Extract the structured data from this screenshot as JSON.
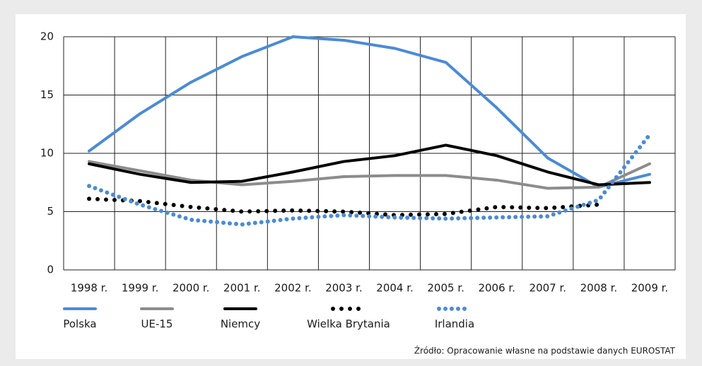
{
  "chart_data": {
    "type": "line",
    "categories": [
      "1998 r.",
      "1999 r.",
      "2000 r.",
      "2001 r.",
      "2002 r.",
      "2003 r.",
      "2004 r.",
      "2005 r.",
      "2006 r.",
      "2007 r.",
      "2008 r.",
      "2009 r."
    ],
    "series": [
      {
        "name": "Polska",
        "color": "#4a8bd6",
        "style": "solid",
        "values": [
          10.2,
          13.4,
          16.1,
          18.3,
          20.0,
          19.7,
          19.0,
          17.8,
          13.9,
          9.6,
          7.1,
          8.2
        ]
      },
      {
        "name": "UE-15",
        "color": "#8c8c8c",
        "style": "solid",
        "values": [
          9.3,
          8.5,
          7.7,
          7.3,
          7.6,
          8.0,
          8.1,
          8.1,
          7.7,
          7.0,
          7.1,
          9.1
        ]
      },
      {
        "name": "Niemcy",
        "color": "#000000",
        "style": "solid",
        "values": [
          9.1,
          8.2,
          7.5,
          7.6,
          8.4,
          9.3,
          9.8,
          10.7,
          9.8,
          8.4,
          7.3,
          7.5
        ]
      },
      {
        "name": "Wielka Brytania",
        "color": "#000000",
        "style": "dotted",
        "values": [
          6.1,
          5.9,
          5.4,
          5.0,
          5.1,
          5.0,
          4.7,
          4.8,
          5.4,
          5.3,
          5.6,
          null
        ]
      },
      {
        "name": "Irlandia",
        "color": "#4a8bd6",
        "style": "dotted",
        "values": [
          7.2,
          5.6,
          4.3,
          3.9,
          4.4,
          4.7,
          4.5,
          4.4,
          4.5,
          4.6,
          6.0,
          11.6
        ]
      }
    ],
    "ylim": [
      0,
      20
    ],
    "yticks": [
      0,
      5,
      10,
      15,
      20
    ],
    "grid": true,
    "source": "Źródło: Opracowanie własne na podstawie danych EUROSTAT"
  }
}
